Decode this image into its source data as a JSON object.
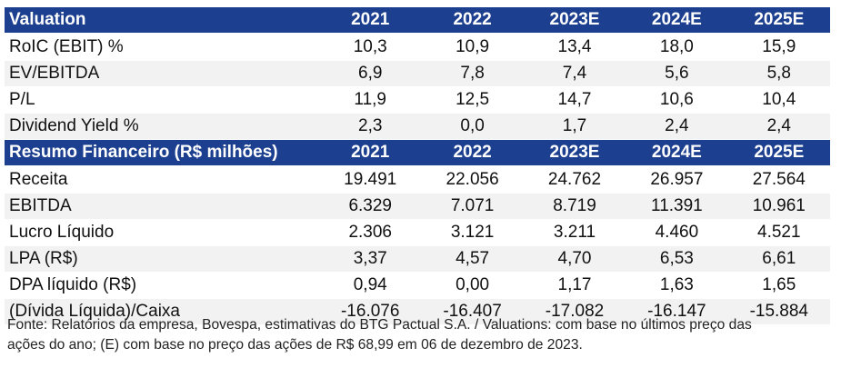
{
  "valuation": {
    "header": [
      "Valuation",
      "2021",
      "2022",
      "2023E",
      "2024E",
      "2025E"
    ],
    "rows": [
      {
        "label": "RoIC (EBIT) %",
        "values": [
          "10,3",
          "10,9",
          "13,4",
          "18,0",
          "15,9"
        ]
      },
      {
        "label": "EV/EBITDA",
        "values": [
          "6,9",
          "7,8",
          "7,4",
          "5,6",
          "5,8"
        ]
      },
      {
        "label": "P/L",
        "values": [
          "11,9",
          "12,5",
          "14,7",
          "10,6",
          "10,4"
        ]
      },
      {
        "label": "Dividend Yield %",
        "values": [
          "2,3",
          "0,0",
          "1,7",
          "2,4",
          "2,4"
        ]
      }
    ]
  },
  "resumo": {
    "header": [
      "Resumo Financeiro (R$ milhões)",
      "2021",
      "2022",
      "2023E",
      "2024E",
      "2025E"
    ],
    "rows": [
      {
        "label": "Receita",
        "values": [
          "19.491",
          "22.056",
          "24.762",
          "26.957",
          "27.564"
        ]
      },
      {
        "label": "EBITDA",
        "values": [
          "6.329",
          "7.071",
          "8.719",
          "11.391",
          "10.961"
        ]
      },
      {
        "label": "Lucro Líquido",
        "values": [
          "2.306",
          "3.121",
          "3.211",
          "4.460",
          "4.521"
        ]
      },
      {
        "label": "LPA (R$)",
        "values": [
          "3,37",
          "4,57",
          "4,70",
          "6,53",
          "6,61"
        ]
      },
      {
        "label": "DPA líquido (R$)",
        "values": [
          "0,94",
          "0,00",
          "1,17",
          "1,63",
          "1,65"
        ]
      },
      {
        "label": "(Dívida Líquida)/Caixa",
        "values": [
          "-16.076",
          "-16.407",
          "-17.082",
          "-16.147",
          "-15.884"
        ]
      }
    ]
  },
  "footnote": {
    "line1": "Fonte: Relatórios da empresa, Bovespa, estimativas do BTG Pactual S.A. / Valuations: com base no últimos preço das",
    "line2": "ações do ano; (E) com base no preço das ações de R$ 68,99 em 06 de dezembro de 2023."
  },
  "colors": {
    "header_bg": "#1c3f8f",
    "stripe": "#f2f2f2"
  }
}
